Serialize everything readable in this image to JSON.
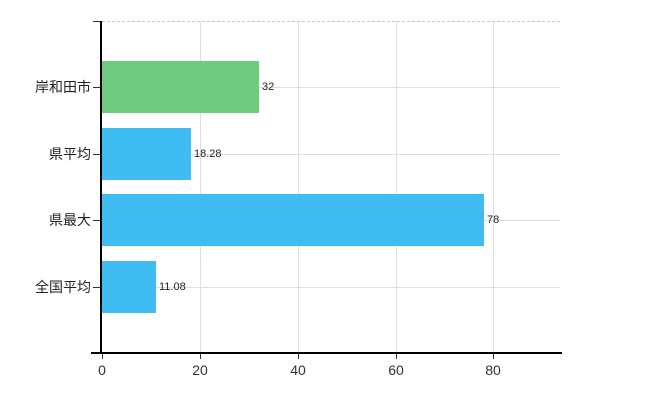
{
  "chart_data": {
    "type": "bar",
    "orientation": "horizontal",
    "title": "",
    "categories": [
      "岸和田市",
      "県平均",
      "県最大",
      "全国平均"
    ],
    "values": [
      32,
      18.28,
      78,
      11.08
    ],
    "value_labels": [
      "32",
      "18.28",
      "78",
      "11.08"
    ],
    "bar_colors": [
      "#70ca80",
      "#3fbdf2",
      "#3fbdf2",
      "#3fbdf2"
    ],
    "x_ticks": [
      0,
      20,
      40,
      60,
      80
    ],
    "x_tick_labels": [
      "0",
      "20",
      "40",
      "60",
      "80"
    ],
    "xlim": [
      0,
      93.6
    ],
    "grid": "on",
    "legend": "none",
    "background_color": "#ffffff",
    "axis_color": "#000000",
    "gridline_color": "#dedede",
    "label_color": "#222222"
  }
}
